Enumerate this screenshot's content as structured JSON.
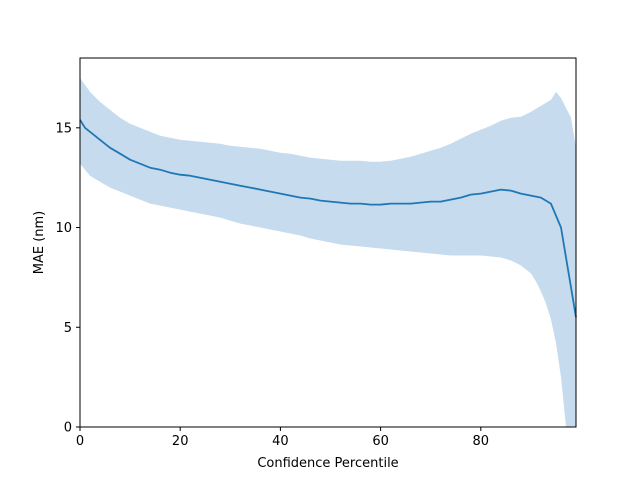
{
  "chart_data": {
    "type": "line",
    "xlabel": "Confidence Percentile",
    "ylabel": "MAE (nm)",
    "xlim": [
      0,
      99
    ],
    "ylim": [
      0,
      18.5
    ],
    "xticks": [
      0,
      20,
      40,
      60,
      80
    ],
    "yticks": [
      0,
      5,
      10,
      15
    ],
    "grid": false,
    "legend": "none",
    "colors": {
      "line": "#1f77b4",
      "band": "#c6dbed"
    },
    "series": [
      {
        "kind": "mean",
        "x": [
          0,
          1,
          2,
          4,
          6,
          8,
          10,
          12,
          14,
          16,
          18,
          20,
          22,
          24,
          26,
          28,
          30,
          32,
          34,
          36,
          38,
          40,
          42,
          44,
          46,
          48,
          50,
          52,
          54,
          56,
          58,
          60,
          62,
          64,
          66,
          68,
          70,
          72,
          74,
          76,
          78,
          80,
          82,
          84,
          86,
          88,
          90,
          92,
          94,
          96,
          97,
          98,
          99
        ],
        "y": [
          15.4,
          15.0,
          14.8,
          14.4,
          14.0,
          13.7,
          13.4,
          13.2,
          13.0,
          12.9,
          12.75,
          12.65,
          12.6,
          12.5,
          12.4,
          12.3,
          12.2,
          12.1,
          12.0,
          11.9,
          11.8,
          11.7,
          11.6,
          11.5,
          11.45,
          11.35,
          11.3,
          11.25,
          11.2,
          11.2,
          11.15,
          11.15,
          11.2,
          11.2,
          11.2,
          11.25,
          11.3,
          11.3,
          11.4,
          11.5,
          11.65,
          11.7,
          11.8,
          11.9,
          11.85,
          11.7,
          11.6,
          11.5,
          11.2,
          10.0,
          8.5,
          7.0,
          5.5
        ]
      },
      {
        "kind": "upper",
        "x": [
          0,
          2,
          4,
          6,
          8,
          10,
          12,
          14,
          16,
          18,
          20,
          22,
          24,
          26,
          28,
          30,
          32,
          34,
          36,
          38,
          40,
          42,
          44,
          46,
          48,
          50,
          52,
          54,
          56,
          58,
          60,
          62,
          64,
          66,
          68,
          70,
          72,
          74,
          76,
          78,
          80,
          82,
          84,
          86,
          88,
          90,
          92,
          94,
          95,
          96,
          97,
          98,
          99
        ],
        "y": [
          17.5,
          16.8,
          16.3,
          15.9,
          15.5,
          15.2,
          15.0,
          14.8,
          14.6,
          14.5,
          14.4,
          14.35,
          14.3,
          14.25,
          14.2,
          14.1,
          14.05,
          14.0,
          13.95,
          13.85,
          13.75,
          13.7,
          13.6,
          13.5,
          13.45,
          13.4,
          13.35,
          13.35,
          13.35,
          13.3,
          13.3,
          13.35,
          13.45,
          13.55,
          13.7,
          13.85,
          14.0,
          14.2,
          14.45,
          14.7,
          14.9,
          15.1,
          15.35,
          15.5,
          15.55,
          15.8,
          16.1,
          16.4,
          16.8,
          16.5,
          16.0,
          15.5,
          14.0
        ]
      },
      {
        "kind": "lower",
        "x": [
          0,
          2,
          4,
          6,
          8,
          10,
          12,
          14,
          16,
          18,
          20,
          22,
          24,
          26,
          28,
          30,
          32,
          34,
          36,
          38,
          40,
          42,
          44,
          46,
          48,
          50,
          52,
          54,
          56,
          58,
          60,
          62,
          64,
          66,
          68,
          70,
          72,
          74,
          76,
          78,
          80,
          82,
          84,
          86,
          88,
          90,
          91,
          92,
          93,
          94,
          95,
          96,
          97,
          98,
          99
        ],
        "y": [
          13.2,
          12.6,
          12.3,
          12.0,
          11.8,
          11.6,
          11.4,
          11.2,
          11.1,
          11.0,
          10.9,
          10.8,
          10.7,
          10.6,
          10.5,
          10.35,
          10.2,
          10.1,
          10.0,
          9.9,
          9.8,
          9.7,
          9.6,
          9.45,
          9.35,
          9.25,
          9.15,
          9.1,
          9.05,
          9.0,
          8.95,
          8.9,
          8.85,
          8.8,
          8.75,
          8.7,
          8.65,
          8.6,
          8.6,
          8.6,
          8.6,
          8.55,
          8.5,
          8.35,
          8.1,
          7.7,
          7.3,
          6.8,
          6.2,
          5.4,
          4.2,
          2.5,
          0.0,
          0.0,
          0.0
        ]
      }
    ]
  }
}
